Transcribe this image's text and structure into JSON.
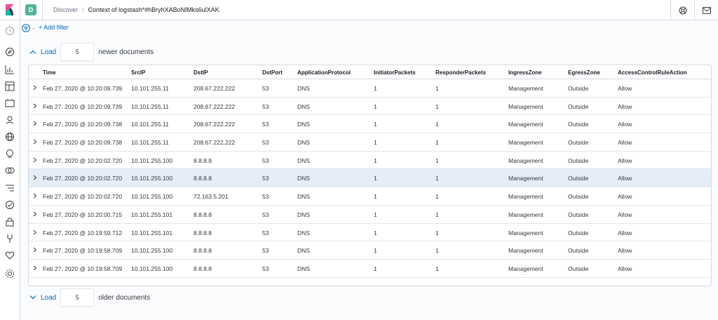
{
  "header": {
    "space_initial": "D",
    "breadcrumbs": [
      "Discover",
      "Context of logstash*#hBryhXABoNlMks6ulXAK"
    ]
  },
  "filter_bar": {
    "add_filter_label": "+ Add filter"
  },
  "newer": {
    "button_label": "Load",
    "count": "5",
    "label": "newer documents"
  },
  "older": {
    "button_label": "Load",
    "count": "5",
    "label": "older documents"
  },
  "table": {
    "columns": [
      "Time",
      "SrcIP",
      "DstIP",
      "DstPort",
      "ApplicationProtocol",
      "InitiatorPackets",
      "ResponderPackets",
      "IngressZone",
      "EgressZone",
      "AccessControlRuleAction"
    ],
    "rows": [
      [
        "Feb 27, 2020 @ 10:20:09.739",
        "10.101.255.11",
        "208.67.222.222",
        "53",
        "DNS",
        "1",
        "1",
        "Management",
        "Outside",
        "Allow"
      ],
      [
        "Feb 27, 2020 @ 10:20:09.739",
        "10.101.255.11",
        "208.67.222.222",
        "53",
        "DNS",
        "1",
        "1",
        "Management",
        "Outside",
        "Allow"
      ],
      [
        "Feb 27, 2020 @ 10:20:09.738",
        "10.101.255.11",
        "208.67.222.222",
        "53",
        "DNS",
        "1",
        "1",
        "Management",
        "Outside",
        "Allow"
      ],
      [
        "Feb 27, 2020 @ 10:20:09.738",
        "10.101.255.11",
        "208.67.222.222",
        "53",
        "DNS",
        "1",
        "1",
        "Management",
        "Outside",
        "Allow"
      ],
      [
        "Feb 27, 2020 @ 10:20:02.720",
        "10.101.255.100",
        "8.8.8.8",
        "53",
        "DNS",
        "1",
        "1",
        "Management",
        "Outside",
        "Allow"
      ],
      [
        "Feb 27, 2020 @ 10:20:02.720",
        "10.101.255.100",
        "8.8.8.8",
        "53",
        "DNS",
        "1",
        "1",
        "Management",
        "Outside",
        "Allow"
      ],
      [
        "Feb 27, 2020 @ 10:20:02.720",
        "10.101.255.100",
        "72.163.5.201",
        "53",
        "DNS",
        "1",
        "1",
        "Management",
        "Outside",
        "Allow"
      ],
      [
        "Feb 27, 2020 @ 10:20:00.715",
        "10.101.255.101",
        "8.8.8.8",
        "53",
        "DNS",
        "1",
        "1",
        "Management",
        "Outside",
        "Allow"
      ],
      [
        "Feb 27, 2020 @ 10:19:59.712",
        "10.101.255.101",
        "8.8.8.8",
        "53",
        "DNS",
        "1",
        "1",
        "Management",
        "Outside",
        "Allow"
      ],
      [
        "Feb 27, 2020 @ 10:19:58.709",
        "10.101.255.100",
        "8.8.8.8",
        "53",
        "DNS",
        "1",
        "1",
        "Management",
        "Outside",
        "Allow"
      ],
      [
        "Feb 27, 2020 @ 10:19:58.709",
        "10.101.255.100",
        "8.8.8.8",
        "53",
        "DNS",
        "1",
        "1",
        "Management",
        "Outside",
        "Allow"
      ]
    ],
    "highlighted_row": 5
  },
  "icons": {
    "logo": "kibana-logo",
    "top_right": [
      "help-icon",
      "newsfeed-icon"
    ],
    "sidenav": [
      "recently-viewed-icon",
      "discover-icon",
      "visualize-icon",
      "dashboard-icon",
      "canvas-icon",
      "maps-icon",
      "machine-learning-icon",
      "infrastructure-icon",
      "logs-icon",
      "apm-icon",
      "uptime-icon",
      "siem-icon",
      "dev-tools-icon",
      "stack-monitoring-icon",
      "management-icon"
    ]
  },
  "colors": {
    "accent": "#006bb8",
    "space_avatar": "#54b399",
    "highlight_row": "#e6edf6"
  }
}
